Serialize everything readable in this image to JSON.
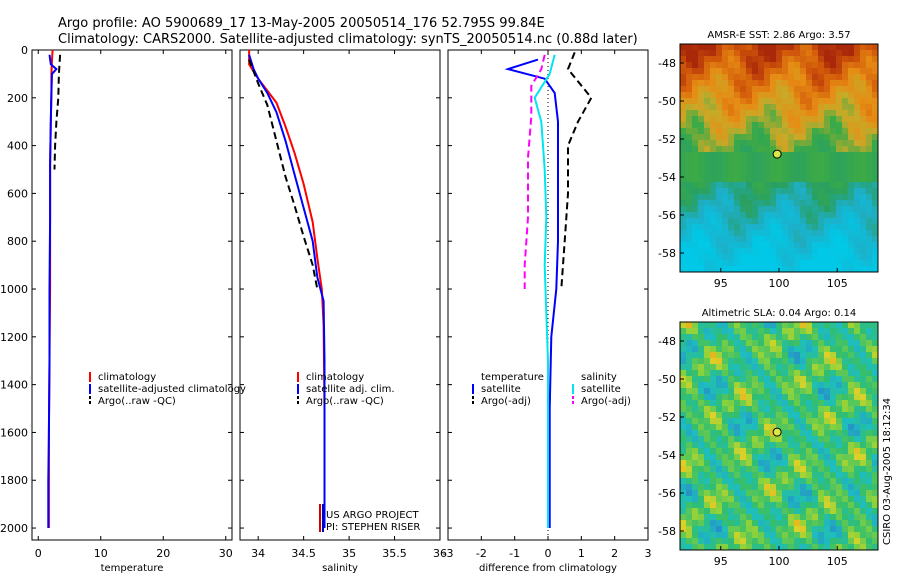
{
  "header": {
    "line1": "Argo profile: AO 5900689_17 13-May-2005 20050514_176 52.795S 99.84E",
    "line2": "Climatology: CARS2000. Satellite-adjusted climatology: synTS_20050514.nc (0.88d later)"
  },
  "side_label": "CSIRO 03-Aug-2005 18:12:34",
  "credit": {
    "line1": "US ARGO PROJECT",
    "line2": "PI: STEPHEN RISER"
  },
  "colors": {
    "climatology": "#ff0000",
    "satellite": "#0000ff",
    "argo": "#000000",
    "satellite_salinity": "#00e5ee",
    "argo_salinity": "#ff00ff"
  },
  "chart_data": [
    {
      "type": "line",
      "xlabel": "temperature",
      "xlim": [
        -1,
        31
      ],
      "ylim": [
        0,
        2050
      ],
      "y_reversed": true,
      "xticks": [
        0,
        10,
        20,
        30
      ],
      "yticks": [
        0,
        200,
        400,
        600,
        800,
        1000,
        1200,
        1400,
        1600,
        1800,
        2000
      ],
      "legend": {
        "position": "right-middle",
        "entries": [
          "climatology",
          "satellite-adjusted climatology",
          "Argo(..raw -QC)"
        ]
      },
      "series": [
        {
          "name": "climatology",
          "color_key": "climatology",
          "dash": false,
          "points": [
            [
              2.3,
              0
            ],
            [
              2.2,
              40
            ],
            [
              2.1,
              100
            ],
            [
              2.1,
              180
            ],
            [
              2.0,
              300
            ],
            [
              1.9,
              480
            ],
            [
              1.9,
              700
            ],
            [
              1.9,
              1000
            ],
            [
              1.8,
              1300
            ],
            [
              1.7,
              1600
            ],
            [
              1.7,
              1800
            ],
            [
              1.7,
              2000
            ]
          ]
        },
        {
          "name": "satellite-adjusted climatology",
          "color_key": "satellite",
          "dash": false,
          "points": [
            [
              1.8,
              20
            ],
            [
              2.0,
              60
            ],
            [
              2.9,
              80
            ],
            [
              2.2,
              100
            ],
            [
              2.1,
              180
            ],
            [
              2.0,
              300
            ],
            [
              1.9,
              480
            ],
            [
              1.9,
              700
            ],
            [
              1.8,
              1000
            ],
            [
              1.8,
              1300
            ],
            [
              1.7,
              1600
            ],
            [
              1.6,
              1800
            ],
            [
              1.6,
              2000
            ]
          ]
        },
        {
          "name": "Argo(..raw -QC)",
          "color_key": "argo",
          "dash": true,
          "points": [
            [
              3.5,
              20
            ],
            [
              3.3,
              100
            ],
            [
              3.2,
              200
            ],
            [
              2.9,
              300
            ],
            [
              2.7,
              400
            ],
            [
              2.6,
              500
            ]
          ]
        }
      ]
    },
    {
      "type": "line",
      "xlabel": "salinity",
      "xlim": [
        33.8,
        36
      ],
      "ylim": [
        0,
        2050
      ],
      "y_reversed": true,
      "xticks": [
        34,
        34.5,
        35,
        35.5,
        36
      ],
      "yticks": [
        0,
        200,
        400,
        600,
        800,
        1000,
        1200,
        1400,
        1600,
        1800,
        2000
      ],
      "legend": {
        "position": "right-middle",
        "entries": [
          "climatology",
          "satellite adj. clim.",
          "Argo(..raw -QC)"
        ]
      },
      "series": [
        {
          "name": "climatology",
          "color_key": "climatology",
          "dash": false,
          "points": [
            [
              33.9,
              0
            ],
            [
              33.9,
              60
            ],
            [
              34.0,
              120
            ],
            [
              34.1,
              170
            ],
            [
              34.2,
              220
            ],
            [
              34.3,
              320
            ],
            [
              34.4,
              430
            ],
            [
              34.5,
              560
            ],
            [
              34.6,
              720
            ],
            [
              34.65,
              870
            ],
            [
              34.7,
              1000
            ],
            [
              34.72,
              1150
            ],
            [
              34.73,
              1500
            ],
            [
              34.73,
              2000
            ]
          ]
        },
        {
          "name": "satellite adj. clim.",
          "color_key": "satellite",
          "dash": false,
          "points": [
            [
              33.9,
              20
            ],
            [
              33.95,
              80
            ],
            [
              34.0,
              120
            ],
            [
              34.1,
              180
            ],
            [
              34.2,
              260
            ],
            [
              34.3,
              380
            ],
            [
              34.4,
              520
            ],
            [
              34.5,
              660
            ],
            [
              34.6,
              800
            ],
            [
              34.65,
              950
            ],
            [
              34.72,
              1050
            ],
            [
              34.73,
              1300
            ],
            [
              34.73,
              2000
            ]
          ]
        },
        {
          "name": "Argo(..raw -QC)",
          "color_key": "argo",
          "dash": true,
          "points": [
            [
              33.9,
              40
            ],
            [
              34.0,
              140
            ],
            [
              34.1,
              230
            ],
            [
              34.2,
              380
            ],
            [
              34.3,
              530
            ],
            [
              34.4,
              650
            ],
            [
              34.5,
              780
            ],
            [
              34.6,
              900
            ],
            [
              34.65,
              1000
            ]
          ]
        }
      ]
    },
    {
      "type": "line",
      "xlabel": "difference from climatology",
      "xlim": [
        -3,
        3
      ],
      "ylim": [
        0,
        2050
      ],
      "y_reversed": true,
      "xticks": [
        -3,
        -2,
        -1,
        0,
        1,
        2,
        3
      ],
      "yticks": [
        0,
        200,
        400,
        600,
        800,
        1000,
        1200,
        1400,
        1600,
        1800,
        2000
      ],
      "legend_left": {
        "position": "left-middle",
        "title": "temperature",
        "entries": [
          "satellite",
          "Argo(-adj)"
        ]
      },
      "legend_right": {
        "position": "right-middle",
        "title": "salinity",
        "entries": [
          "satellite",
          "Argo(-adj)"
        ]
      },
      "series": [
        {
          "name": "temperature satellite",
          "color_key": "satellite",
          "dash": false,
          "points": [
            [
              -0.3,
              40
            ],
            [
              -1.2,
              80
            ],
            [
              -0.1,
              120
            ],
            [
              0.2,
              180
            ],
            [
              0.3,
              300
            ],
            [
              0.3,
              500
            ],
            [
              0.3,
              800
            ],
            [
              0.25,
              1000
            ],
            [
              0.1,
              1200
            ],
            [
              0.05,
              1500
            ],
            [
              0.05,
              2000
            ]
          ]
        },
        {
          "name": "temperature Argo(-adj)",
          "color_key": "argo",
          "dash": true,
          "points": [
            [
              0.8,
              10
            ],
            [
              0.6,
              80
            ],
            [
              1.3,
              200
            ],
            [
              0.9,
              300
            ],
            [
              0.6,
              400
            ],
            [
              0.6,
              600
            ],
            [
              0.5,
              800
            ],
            [
              0.4,
              1000
            ]
          ]
        },
        {
          "name": "salinity satellite",
          "color_key": "satellite_salinity",
          "dash": false,
          "points": [
            [
              0.2,
              20
            ],
            [
              0.05,
              100
            ],
            [
              -0.4,
              200
            ],
            [
              -0.2,
              300
            ],
            [
              -0.1,
              500
            ],
            [
              -0.05,
              700
            ],
            [
              -0.1,
              900
            ],
            [
              -0.05,
              1100
            ],
            [
              0.0,
              1300
            ],
            [
              0.0,
              1600
            ],
            [
              0.0,
              2000
            ]
          ]
        },
        {
          "name": "salinity Argo(-adj)",
          "color_key": "argo_salinity",
          "dash": true,
          "points": [
            [
              -0.1,
              20
            ],
            [
              -0.2,
              80
            ],
            [
              -0.5,
              150
            ],
            [
              -0.5,
              280
            ],
            [
              -0.6,
              450
            ],
            [
              -0.6,
              700
            ],
            [
              -0.7,
              900
            ],
            [
              -0.7,
              1000
            ]
          ]
        }
      ]
    },
    {
      "type": "heatmap",
      "title": "AMSR-E SST: 2.86 Argo: 3.57",
      "xlim": [
        91.5,
        108.5
      ],
      "ylim": [
        -59,
        -47
      ],
      "xticks": [
        95,
        100,
        105
      ],
      "yticks": [
        -48,
        -50,
        -52,
        -54,
        -56,
        -58
      ],
      "marker": {
        "lon": 99.84,
        "lat": -52.795
      }
    },
    {
      "type": "heatmap",
      "title": "Altimetric SLA: 0.04 Argo: 0.14",
      "xlim": [
        91.5,
        108.5
      ],
      "ylim": [
        -59,
        -47
      ],
      "xticks": [
        95,
        100,
        105
      ],
      "yticks": [
        -48,
        -50,
        -52,
        -54,
        -56,
        -58
      ],
      "marker": {
        "lon": 99.84,
        "lat": -52.795
      }
    }
  ]
}
